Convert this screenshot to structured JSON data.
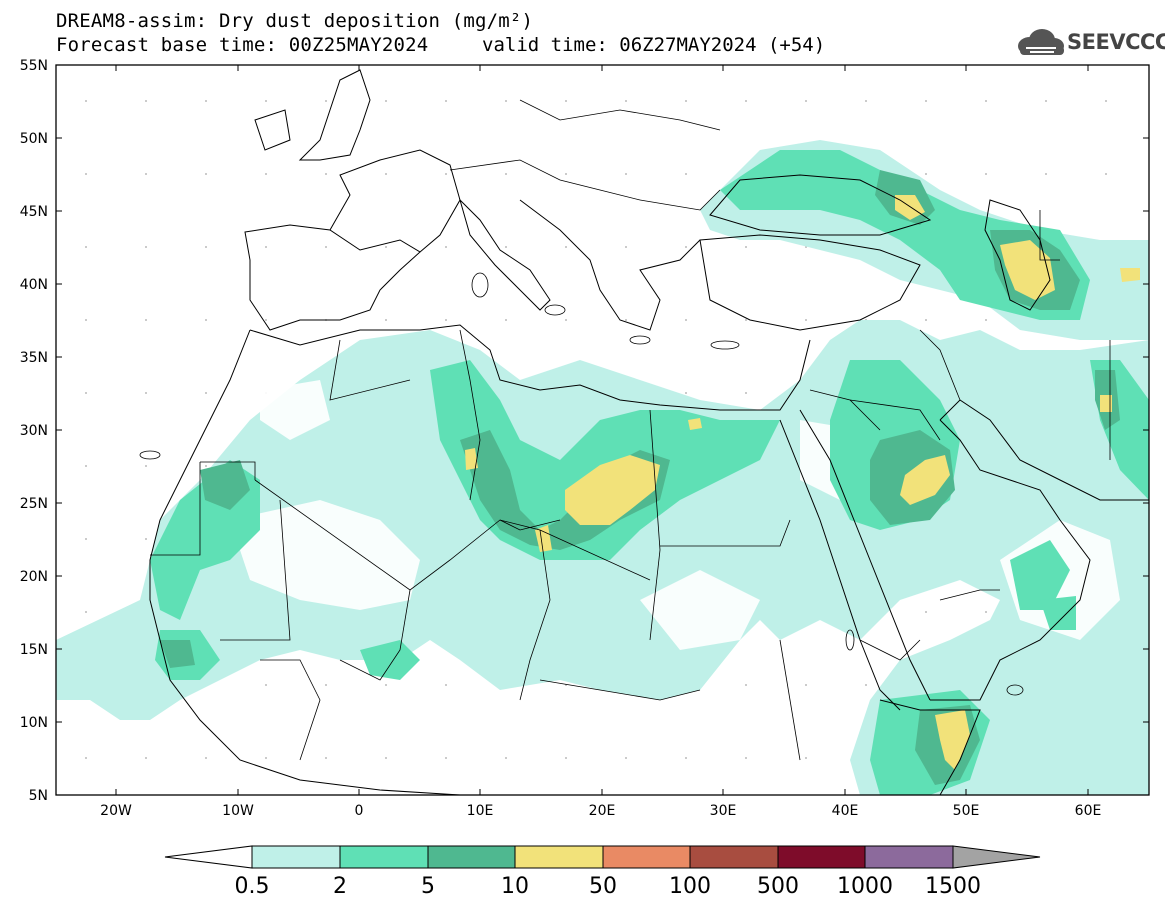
{
  "title": {
    "line1": "DREAM8-assim: Dry dust deposition (mg/m²)",
    "line2": "Forecast base time: 00Z25MAY2024",
    "valid": "valid time: 06Z27MAY2024 (+54)"
  },
  "logo": {
    "text": "SEEVCCC",
    "icon": "cloud-logo-icon"
  },
  "axes": {
    "lat_labels": [
      "55N",
      "50N",
      "45N",
      "40N",
      "35N",
      "30N",
      "25N",
      "20N",
      "15N",
      "10N",
      "5N"
    ],
    "lon_labels": [
      "20W",
      "10W",
      "0",
      "10E",
      "20E",
      "30E",
      "40E",
      "50E",
      "60E"
    ]
  },
  "colorbar": {
    "labels": [
      "0.5",
      "2",
      "5",
      "10",
      "50",
      "100",
      "500",
      "1000",
      "1500"
    ],
    "colors": [
      "#bff0e8",
      "#5fe0b5",
      "#4fb890",
      "#f2e27a",
      "#e98a64",
      "#a84d40",
      "#7e0c2a",
      "#8c6a9c",
      "#a3a3a3"
    ]
  },
  "colors": {
    "level1": "#bff0e8",
    "level2": "#5fe0b5",
    "level3": "#4fb890",
    "level4": "#f2e27a"
  }
}
